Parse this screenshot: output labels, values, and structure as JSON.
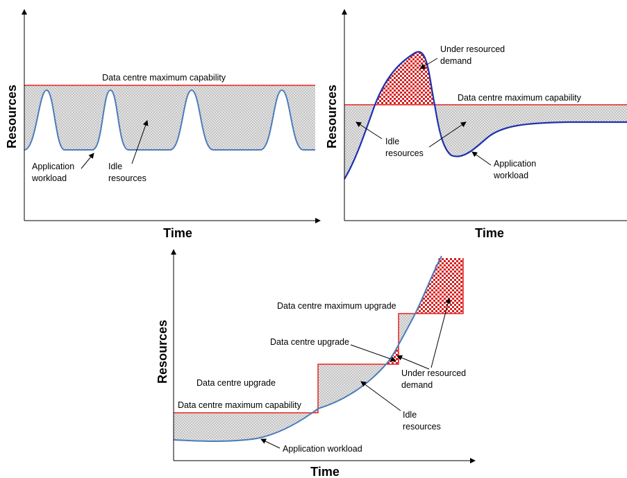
{
  "panel_top_left": {
    "x_axis_title": "Time",
    "y_axis_title": "Resources",
    "capacity_label": "Data centre maximum capability",
    "workload_label_line1": "Application",
    "workload_label_line2": "workload",
    "idle_label_line1": "Idle",
    "idle_label_line2": "resources"
  },
  "panel_top_right": {
    "x_axis_title": "Time",
    "y_axis_title": "Resources",
    "capacity_label": "Data centre maximum capability",
    "under_label_line1": "Under resourced",
    "under_label_line2": "demand",
    "idle_label_line1": "Idle",
    "idle_label_line2": "resources",
    "workload_label_line1": "Application",
    "workload_label_line2": "workload"
  },
  "panel_bottom": {
    "x_axis_title": "Time",
    "y_axis_title": "Resources",
    "max_upgrade_label": "Data centre maximum upgrade",
    "upgrade_label_1": "Data centre upgrade",
    "upgrade_label_2": "Data centre upgrade",
    "capability_label": "Data centre maximum capability",
    "under_label_line1": "Under resourced",
    "under_label_line2": "demand",
    "idle_label_line1": "Idle",
    "idle_label_line2": "resources",
    "workload_label": "Application workload"
  },
  "colors": {
    "capacity_line": "#e8231f",
    "workload_line_light": "#4a7bbd",
    "workload_line_dark": "#1f2fae",
    "idle_fill": "#c9c9c9",
    "under_fill": "#d42020"
  }
}
